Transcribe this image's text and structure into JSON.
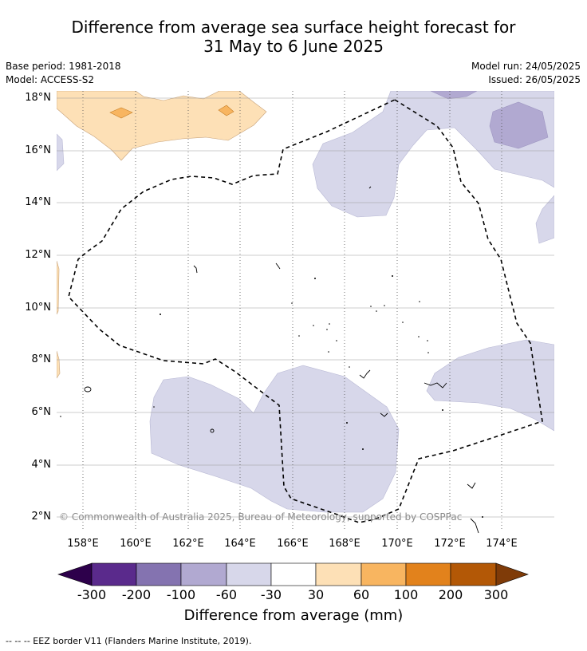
{
  "title_line1": "Difference from average sea surface height forecast for",
  "title_line2": "31 May to 6 June 2025",
  "base_period": "Base period: 1981-2018",
  "model": "Model: ACCESS-S2",
  "model_run": "Model run: 24/05/2025",
  "issued": "Issued: 26/05/2025",
  "lat_labels": [
    "18°N",
    "16°N",
    "14°N",
    "12°N",
    "10°N",
    "8°N",
    "6°N",
    "4°N",
    "2°N"
  ],
  "lon_labels": [
    "158°E",
    "160°E",
    "162°E",
    "164°E",
    "166°E",
    "168°E",
    "170°E",
    "172°E",
    "174°E"
  ],
  "copyright": "© Commonwealth of Australia 2025, Bureau of Meteorology, supported by COSPPac",
  "colorbar": {
    "ticks": [
      "-300",
      "-200",
      "-100",
      "-60",
      "-30",
      "30",
      "60",
      "100",
      "200",
      "300"
    ],
    "colors": [
      "#2d004b",
      "#5a2a8c",
      "#8473b0",
      "#b1a9d1",
      "#d7d7ea",
      "#ffffff",
      "#fde0b6",
      "#f8b560",
      "#e2821c",
      "#b35806",
      "#7f3b08"
    ],
    "label": "Difference from average (mm)"
  },
  "footer": "--  --  -- EEZ border V11 (Flanders Marine Institute, 2019)."
}
